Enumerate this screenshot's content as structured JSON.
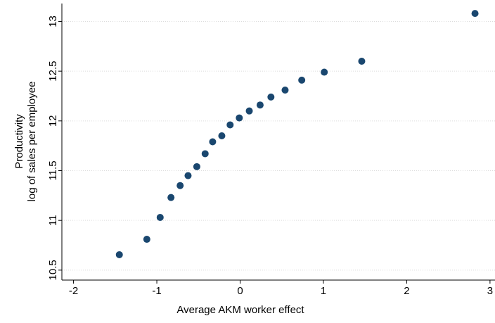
{
  "chart_data": {
    "type": "scatter",
    "xlabel": "Average AKM worker effect",
    "ylabel": [
      "Productivity",
      "log of sales per employee"
    ],
    "x": [
      -1.45,
      -1.12,
      -0.96,
      -0.83,
      -0.72,
      -0.625,
      -0.52,
      -0.42,
      -0.33,
      -0.22,
      -0.12,
      -0.01,
      0.11,
      0.24,
      0.37,
      0.54,
      0.74,
      1.01,
      1.46,
      2.82
    ],
    "values": [
      10.655,
      10.81,
      11.03,
      11.23,
      11.35,
      11.45,
      11.54,
      11.67,
      11.79,
      11.85,
      11.96,
      12.03,
      12.1,
      12.16,
      12.24,
      12.31,
      12.41,
      12.49,
      12.6,
      13.08
    ],
    "color": "#1a476f",
    "xlim": [
      -2.14,
      3.06
    ],
    "ylim": [
      10.4,
      13.18
    ],
    "xticks": [
      -2,
      -1,
      0,
      1,
      2,
      3
    ],
    "yticks": [
      10.5,
      11,
      11.5,
      12,
      12.5,
      13
    ],
    "grid": true
  }
}
